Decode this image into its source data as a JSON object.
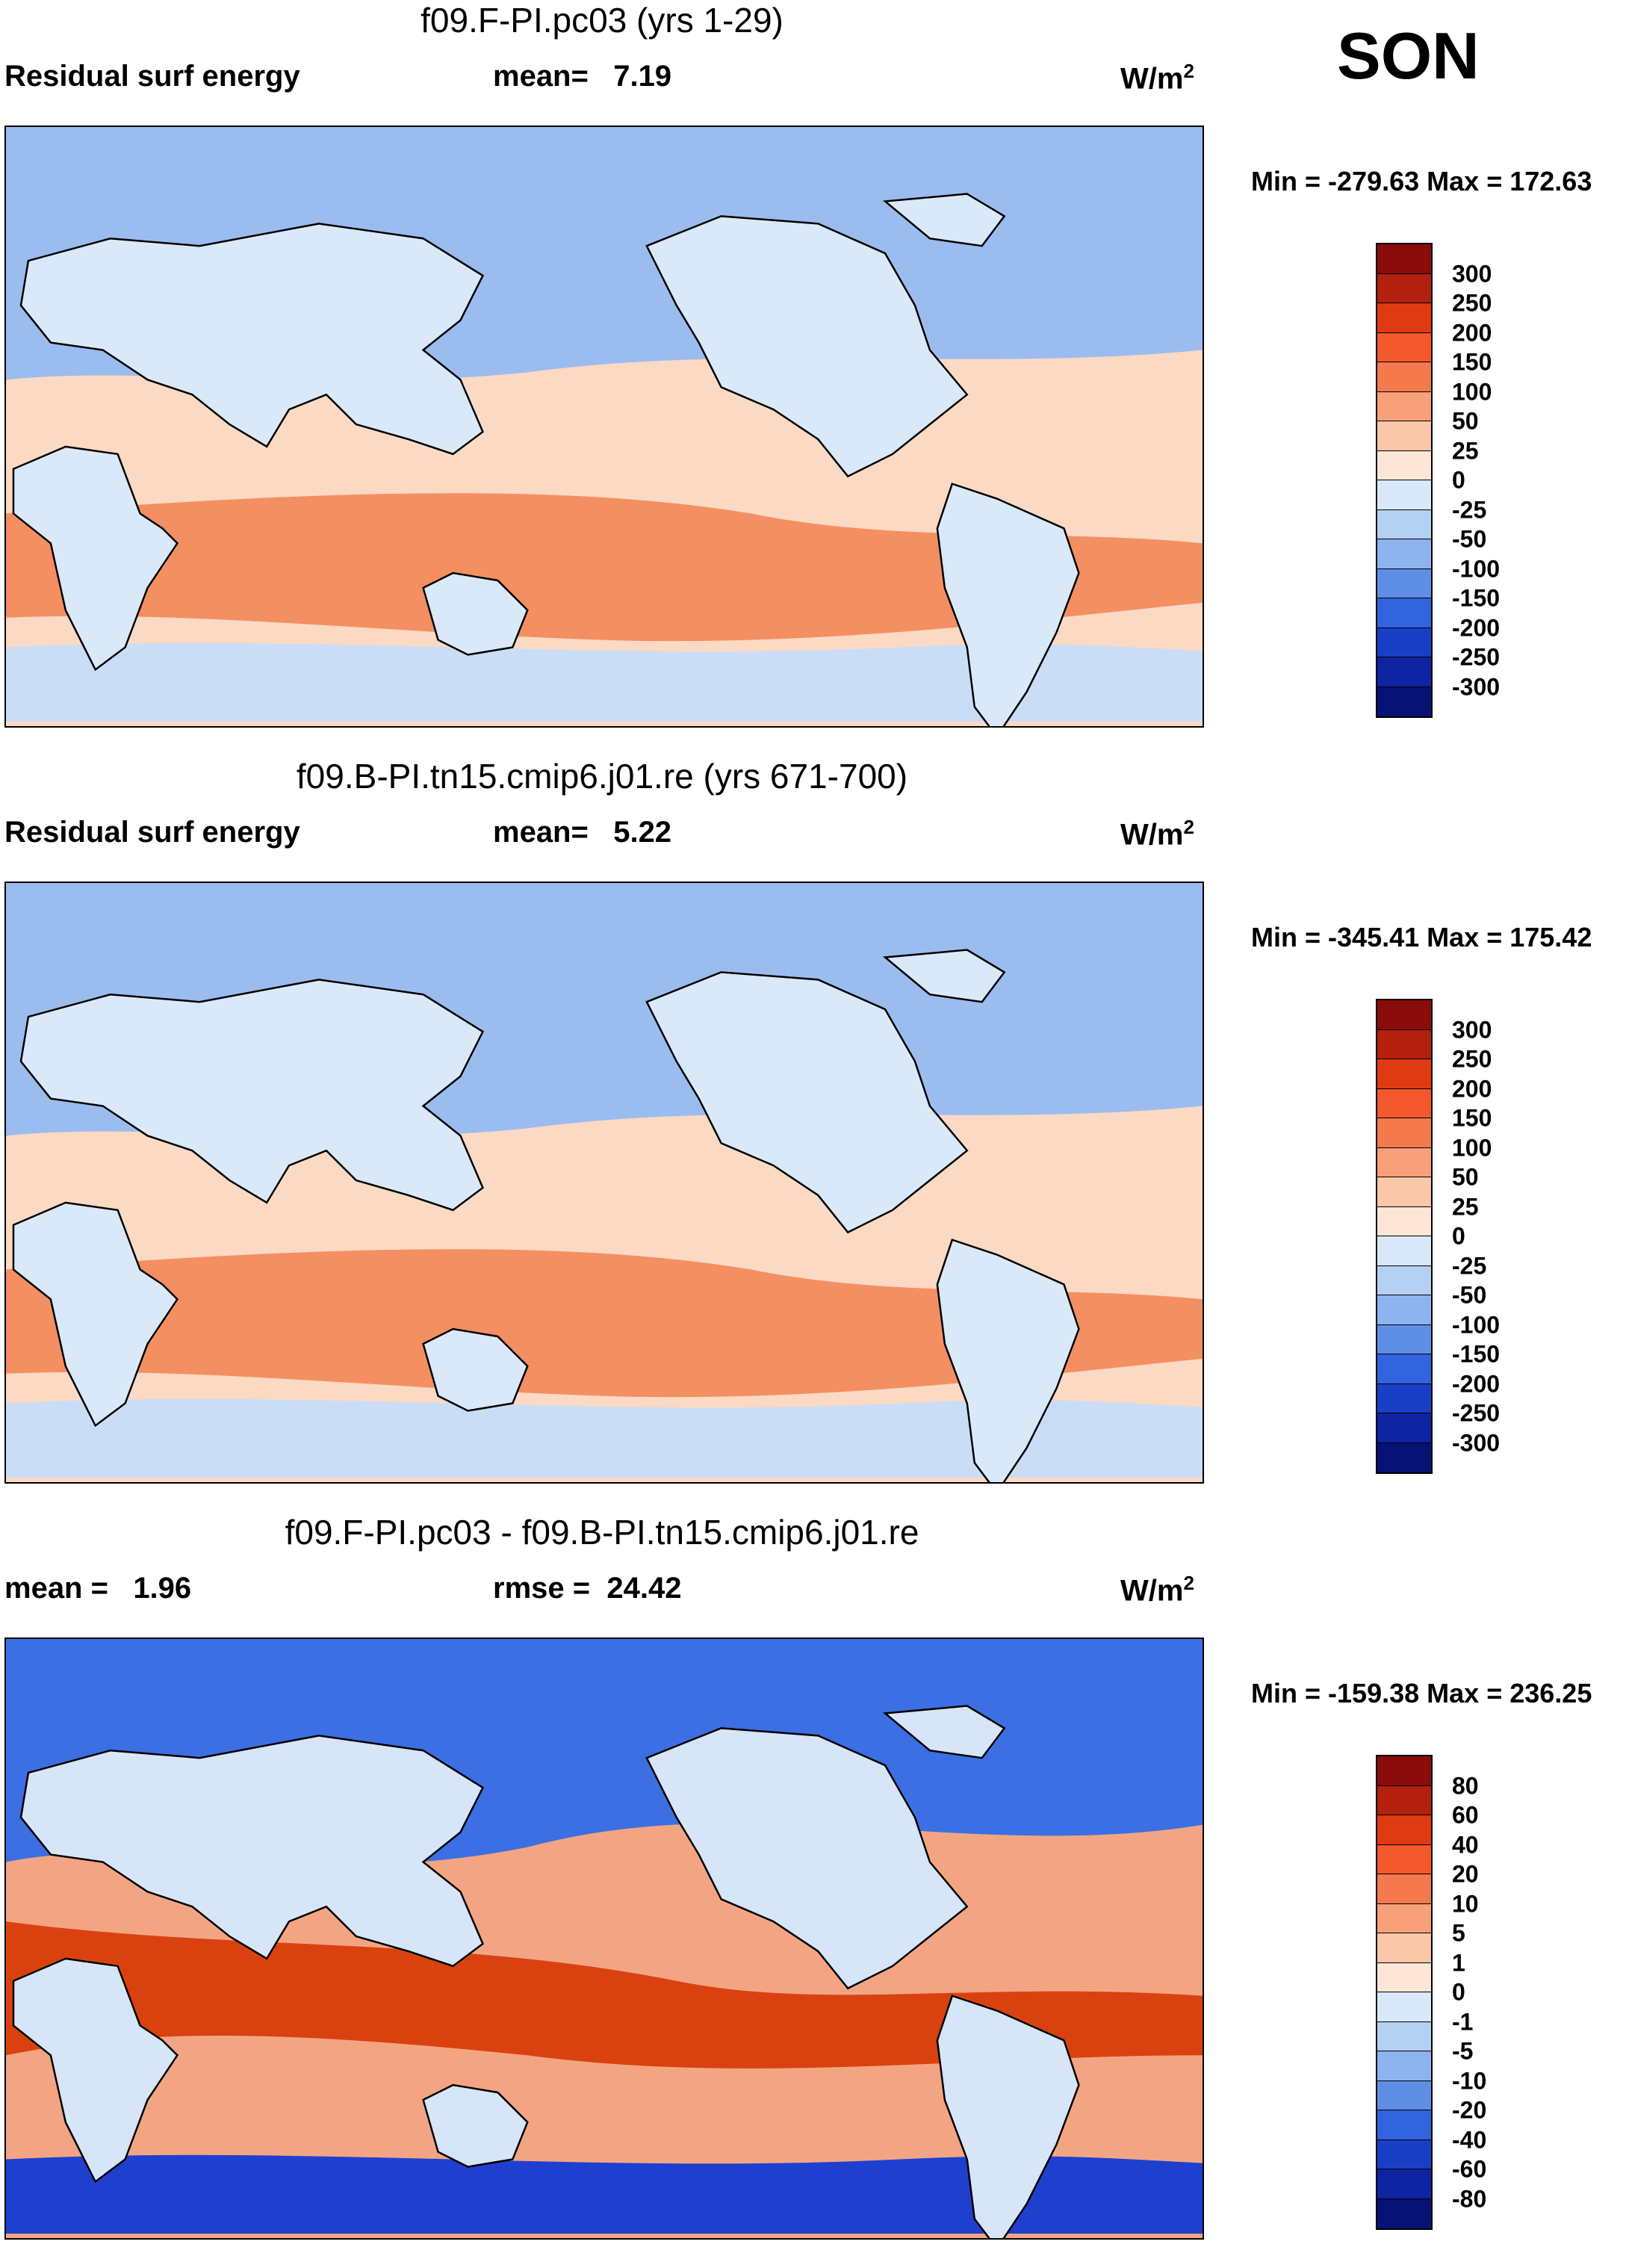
{
  "season": "SON",
  "panels": [
    {
      "id": "top",
      "title": "f09.F-PI.pc03 (yrs 1-29)",
      "left_label": "Residual surf energy",
      "stat_label": "mean=",
      "stat_value": "7.19",
      "stat2_label": "",
      "stat2_value": "",
      "units": "W/m",
      "units_sup": "2",
      "min_label": "Min =",
      "min_value": "-279.63",
      "max_label": "Max =",
      "max_value": "172.63",
      "legend": {
        "labels": [
          "300",
          "250",
          "200",
          "150",
          "100",
          "50",
          "25",
          "0",
          "-25",
          "-50",
          "-100",
          "-150",
          "-200",
          "-250",
          "-300"
        ],
        "colors": [
          "#8b0a0a",
          "#b3200e",
          "#e03a13",
          "#f2582c",
          "#f47a4e",
          "#f7a07a",
          "#fbc7ab",
          "#fde6d6",
          "#d9e9f9",
          "#b4d0f3",
          "#8fb3ee",
          "#5f8ee6",
          "#3264e0",
          "#1a3fc7",
          "#0f24a3",
          "#061274"
        ]
      }
    },
    {
      "id": "middle",
      "title": "f09.B-PI.tn15.cmip6.j01.re (yrs 671-700)",
      "left_label": "Residual surf energy",
      "stat_label": "mean=",
      "stat_value": "5.22",
      "stat2_label": "",
      "stat2_value": "",
      "units": "W/m",
      "units_sup": "2",
      "min_label": "Min =",
      "min_value": "-345.41",
      "max_label": "Max =",
      "max_value": "175.42",
      "legend": {
        "labels": [
          "300",
          "250",
          "200",
          "150",
          "100",
          "50",
          "25",
          "0",
          "-25",
          "-50",
          "-100",
          "-150",
          "-200",
          "-250",
          "-300"
        ],
        "colors": [
          "#8b0a0a",
          "#b3200e",
          "#e03a13",
          "#f2582c",
          "#f47a4e",
          "#f7a07a",
          "#fbc7ab",
          "#fde6d6",
          "#d9e9f9",
          "#b4d0f3",
          "#8fb3ee",
          "#5f8ee6",
          "#3264e0",
          "#1a3fc7",
          "#0f24a3",
          "#061274"
        ]
      }
    },
    {
      "id": "bottom",
      "title": "f09.F-PI.pc03 - f09.B-PI.tn15.cmip6.j01.re",
      "left_label": "",
      "stat_label": "mean =",
      "stat_value": "1.96",
      "stat2_label": "rmse =",
      "stat2_value": "24.42",
      "units": "W/m",
      "units_sup": "2",
      "min_label": "Min =",
      "min_value": "-159.38",
      "max_label": "Max =",
      "max_value": "236.25",
      "legend": {
        "labels": [
          "80",
          "60",
          "40",
          "20",
          "10",
          "5",
          "1",
          "0",
          "-1",
          "-5",
          "-10",
          "-20",
          "-40",
          "-60",
          "-80"
        ],
        "colors": [
          "#8b0a0a",
          "#b3200e",
          "#e03a13",
          "#f2582c",
          "#f47a4e",
          "#f7a07a",
          "#fbc7ab",
          "#fde6d6",
          "#d9e9f9",
          "#b4d0f3",
          "#8fb3ee",
          "#5f8ee6",
          "#3264e0",
          "#1a3fc7",
          "#0f24a3",
          "#061274"
        ]
      }
    }
  ]
}
